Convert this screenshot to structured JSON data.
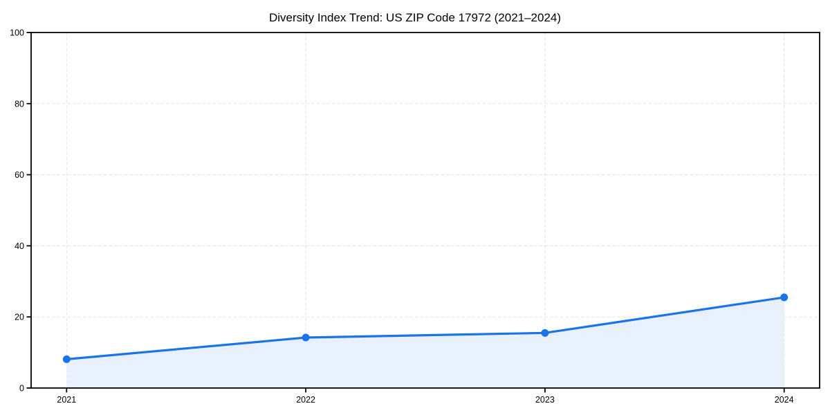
{
  "chart_data": {
    "type": "area",
    "title": "Diversity Index Trend: US ZIP Code 17972 (2021–2024)",
    "categories": [
      "2021",
      "2022",
      "2023",
      "2024"
    ],
    "series": [
      {
        "name": "Diversity Index",
        "values": [
          8.1,
          14.2,
          15.5,
          25.5
        ]
      }
    ],
    "xlabel": "",
    "ylabel": "",
    "ylim": [
      0,
      100
    ],
    "yticks": [
      0,
      20,
      40,
      60,
      80,
      100
    ],
    "grid": "dashed",
    "legend_position": "none",
    "marker": "circle",
    "colors": {
      "line": "#1a73e8",
      "marker": "#1a73e8",
      "fill": "#e8f0fc",
      "gridline": "#dddddd",
      "axis": "#000000",
      "text": "#000000",
      "background": "#ffffff"
    }
  }
}
